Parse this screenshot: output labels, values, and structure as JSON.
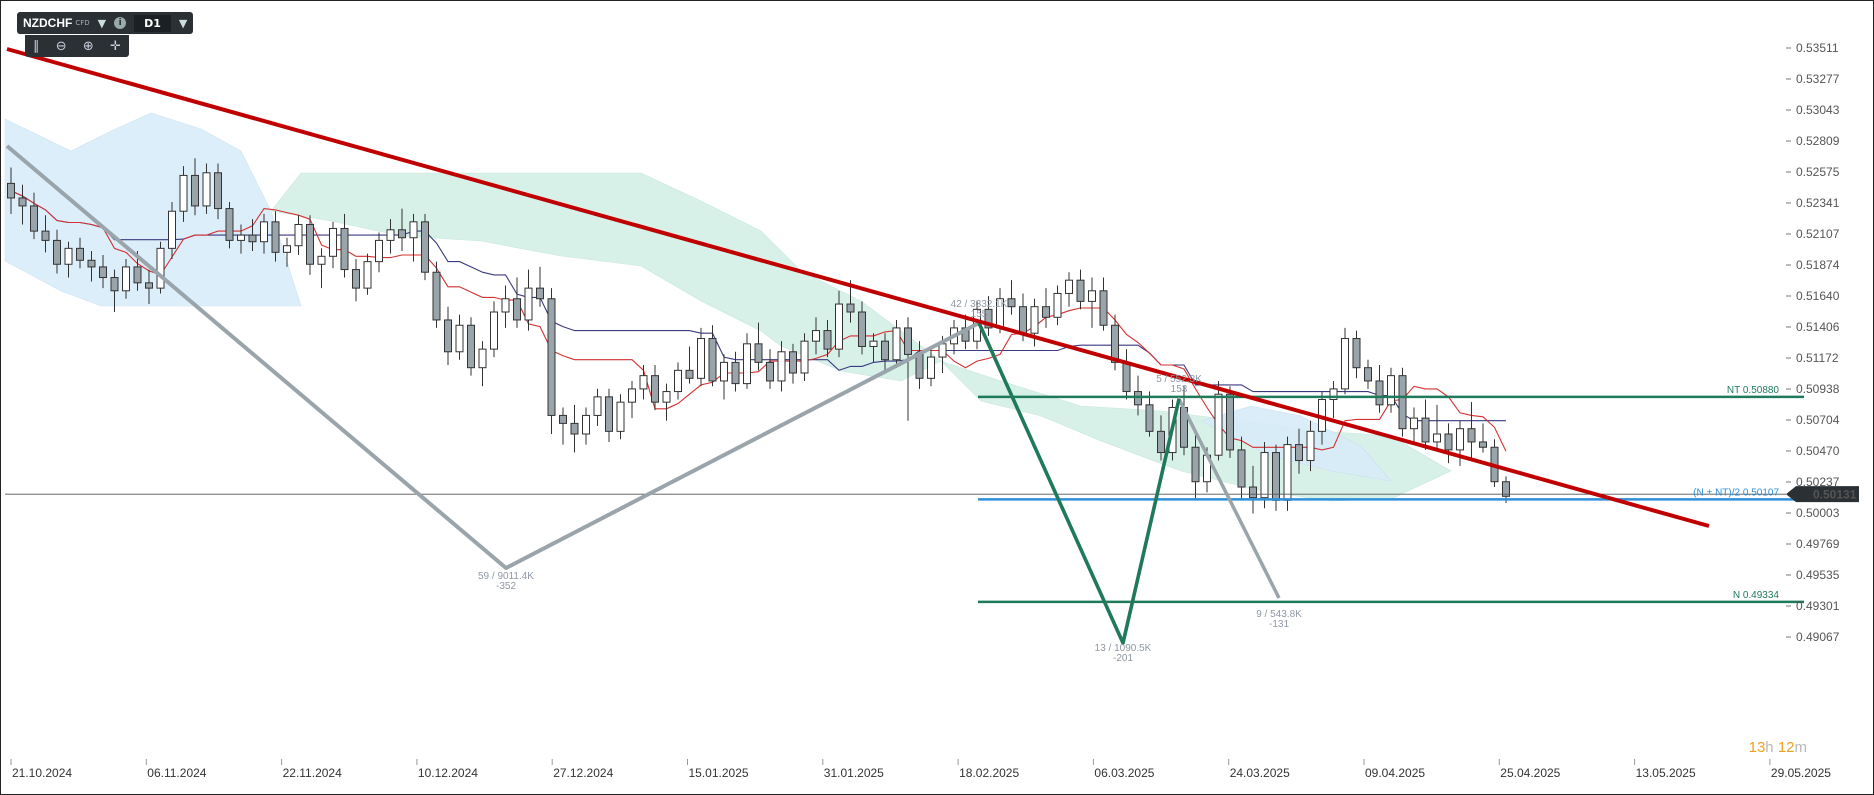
{
  "toolbar": {
    "symbol": "NZDCHF",
    "symbol_type": "CFD",
    "dropdown_icon": "caret-down-icon",
    "info_icon": "info-icon",
    "timeframe": "D1",
    "tools": [
      "indicator-icon",
      "zoom-out-icon",
      "zoom-in-icon",
      "crosshair-icon"
    ]
  },
  "timer": {
    "hours": "13",
    "h_unit": "h",
    "minutes": "12",
    "m_unit": "m"
  },
  "colors": {
    "trend_red": "#c00000",
    "wave_green": "#1e7a5a",
    "wave_gray": "#9aa4ab",
    "level_green": "#1e7a5a",
    "level_blue": "#2f8fd8",
    "cloud_bull": "#d7ecf9",
    "cloud_bear": "#d3efe6",
    "candle_up": "#ffffff",
    "candle_down": "#9aa4ab",
    "tenkan": "#d43030",
    "kijun": "#3a3a80"
  },
  "chart_data": {
    "type": "candlestick",
    "instrument": "NZDCHF",
    "timeframe": "D1",
    "ylim": [
      0.49069,
      0.53511
    ],
    "y_ticks": [
      "0.53511",
      "0.53277",
      "0.53043",
      "0.52809",
      "0.52575",
      "0.52341",
      "0.52107",
      "0.51874",
      "0.51640",
      "0.51406",
      "0.51172",
      "0.50938",
      "0.50704",
      "0.50470",
      "0.50237",
      "0.50003",
      "0.49769",
      "0.49535",
      "0.49301",
      "0.49067"
    ],
    "x_labels": [
      "21.10.2024",
      "06.11.2024",
      "22.11.2024",
      "10.12.2024",
      "27.12.2024",
      "15.01.2025",
      "31.01.2025",
      "18.02.2025",
      "06.03.2025",
      "24.03.2025",
      "09.04.2025",
      "25.04.2025",
      "13.05.2025",
      "29.05.2025"
    ],
    "current_price": "0.50131",
    "horizontal_levels": [
      {
        "label": "NT 0.50880",
        "value": 0.5088,
        "color": "green"
      },
      {
        "label": "(N + NT)/2 0.50107",
        "value": 0.50107,
        "color": "blue"
      },
      {
        "label": "N 0.49334",
        "value": 0.49334,
        "color": "green"
      }
    ],
    "swing_annotations": [
      {
        "top": "59 / 9011.4K",
        "bottom": "-352"
      },
      {
        "top": "42 / 3332.1K",
        "bottom": "155"
      },
      {
        "top": "13 / 1090.5K",
        "bottom": "-201"
      },
      {
        "top": "5 / 552.3K",
        "bottom": "153"
      },
      {
        "top": "9 / 543.8K",
        "bottom": "-131"
      }
    ],
    "candles": [
      [
        0.5249,
        0.5261,
        0.5226,
        0.5238
      ],
      [
        0.5238,
        0.5248,
        0.5218,
        0.5232
      ],
      [
        0.5232,
        0.5242,
        0.5207,
        0.5213
      ],
      [
        0.5213,
        0.5225,
        0.5197,
        0.5206
      ],
      [
        0.5206,
        0.5214,
        0.5181,
        0.5188
      ],
      [
        0.5188,
        0.5205,
        0.5178,
        0.52
      ],
      [
        0.52,
        0.5208,
        0.5185,
        0.5191
      ],
      [
        0.5191,
        0.5198,
        0.5175,
        0.5186
      ],
      [
        0.5186,
        0.5195,
        0.517,
        0.5178
      ],
      [
        0.5178,
        0.5184,
        0.5152,
        0.5168
      ],
      [
        0.5168,
        0.5192,
        0.5162,
        0.5186
      ],
      [
        0.5186,
        0.5198,
        0.5168,
        0.5174
      ],
      [
        0.5174,
        0.5184,
        0.5158,
        0.517
      ],
      [
        0.517,
        0.5205,
        0.5166,
        0.52
      ],
      [
        0.52,
        0.5235,
        0.5192,
        0.5228
      ],
      [
        0.5228,
        0.5262,
        0.522,
        0.5255
      ],
      [
        0.5255,
        0.5268,
        0.5225,
        0.5232
      ],
      [
        0.5232,
        0.5264,
        0.5226,
        0.5257
      ],
      [
        0.5257,
        0.5264,
        0.5222,
        0.523
      ],
      [
        0.523,
        0.5235,
        0.52,
        0.5206
      ],
      [
        0.5206,
        0.5218,
        0.5196,
        0.521
      ],
      [
        0.521,
        0.5222,
        0.5198,
        0.5205
      ],
      [
        0.5205,
        0.5226,
        0.5196,
        0.522
      ],
      [
        0.522,
        0.5228,
        0.519,
        0.5197
      ],
      [
        0.5197,
        0.5208,
        0.5186,
        0.5202
      ],
      [
        0.5202,
        0.5225,
        0.5195,
        0.5218
      ],
      [
        0.5218,
        0.5225,
        0.518,
        0.5188
      ],
      [
        0.5188,
        0.52,
        0.517,
        0.5194
      ],
      [
        0.5194,
        0.522,
        0.5185,
        0.5215
      ],
      [
        0.5215,
        0.5226,
        0.5178,
        0.5184
      ],
      [
        0.5184,
        0.5192,
        0.516,
        0.517
      ],
      [
        0.517,
        0.5196,
        0.5165,
        0.519
      ],
      [
        0.519,
        0.5212,
        0.5182,
        0.5206
      ],
      [
        0.5206,
        0.5222,
        0.5196,
        0.5214
      ],
      [
        0.5214,
        0.523,
        0.5198,
        0.5208
      ],
      [
        0.5208,
        0.5226,
        0.519,
        0.522
      ],
      [
        0.522,
        0.5226,
        0.5176,
        0.5182
      ],
      [
        0.5182,
        0.519,
        0.514,
        0.5146
      ],
      [
        0.5146,
        0.5156,
        0.5112,
        0.5122
      ],
      [
        0.5122,
        0.515,
        0.5116,
        0.5142
      ],
      [
        0.5142,
        0.5148,
        0.5104,
        0.511
      ],
      [
        0.511,
        0.513,
        0.5096,
        0.5124
      ],
      [
        0.5124,
        0.516,
        0.5118,
        0.5152
      ],
      [
        0.5152,
        0.5172,
        0.514,
        0.5162
      ],
      [
        0.5162,
        0.5178,
        0.514,
        0.5146
      ],
      [
        0.5146,
        0.5184,
        0.5138,
        0.517
      ],
      [
        0.517,
        0.5186,
        0.5156,
        0.5162
      ],
      [
        0.5162,
        0.517,
        0.506,
        0.5074
      ],
      [
        0.5074,
        0.508,
        0.5052,
        0.5068
      ],
      [
        0.5068,
        0.5082,
        0.5046,
        0.506
      ],
      [
        0.506,
        0.508,
        0.5052,
        0.5074
      ],
      [
        0.5074,
        0.5094,
        0.5066,
        0.5088
      ],
      [
        0.5088,
        0.5094,
        0.5054,
        0.5062
      ],
      [
        0.5062,
        0.509,
        0.5056,
        0.5084
      ],
      [
        0.5084,
        0.51,
        0.5072,
        0.5094
      ],
      [
        0.5094,
        0.5112,
        0.5086,
        0.5104
      ],
      [
        0.5104,
        0.5112,
        0.5078,
        0.5084
      ],
      [
        0.5084,
        0.5098,
        0.507,
        0.5092
      ],
      [
        0.5092,
        0.5114,
        0.5086,
        0.5108
      ],
      [
        0.5108,
        0.5126,
        0.5098,
        0.5102
      ],
      [
        0.5102,
        0.514,
        0.5096,
        0.5132
      ],
      [
        0.5132,
        0.5142,
        0.5096,
        0.51
      ],
      [
        0.51,
        0.512,
        0.5086,
        0.5114
      ],
      [
        0.5114,
        0.5122,
        0.5092,
        0.5098
      ],
      [
        0.5098,
        0.5136,
        0.5094,
        0.5128
      ],
      [
        0.5128,
        0.5144,
        0.5108,
        0.5114
      ],
      [
        0.5114,
        0.5124,
        0.5094,
        0.51
      ],
      [
        0.51,
        0.513,
        0.5092,
        0.5122
      ],
      [
        0.5122,
        0.5128,
        0.5098,
        0.5106
      ],
      [
        0.5106,
        0.5136,
        0.51,
        0.513
      ],
      [
        0.513,
        0.5148,
        0.512,
        0.5138
      ],
      [
        0.5138,
        0.5146,
        0.5118,
        0.5124
      ],
      [
        0.5124,
        0.5168,
        0.5118,
        0.5158
      ],
      [
        0.5158,
        0.5176,
        0.5144,
        0.5152
      ],
      [
        0.5152,
        0.516,
        0.512,
        0.5126
      ],
      [
        0.5126,
        0.5136,
        0.5114,
        0.513
      ],
      [
        0.513,
        0.5136,
        0.5108,
        0.5116
      ],
      [
        0.5116,
        0.5146,
        0.511,
        0.514
      ],
      [
        0.514,
        0.5148,
        0.507,
        0.512
      ],
      [
        0.512,
        0.513,
        0.5094,
        0.5102
      ],
      [
        0.5102,
        0.5124,
        0.5096,
        0.5118
      ],
      [
        0.5118,
        0.5134,
        0.5106,
        0.5128
      ],
      [
        0.5128,
        0.5146,
        0.512,
        0.514
      ],
      [
        0.514,
        0.515,
        0.5124,
        0.513
      ],
      [
        0.513,
        0.516,
        0.5124,
        0.5154
      ],
      [
        0.5154,
        0.5164,
        0.5134,
        0.514
      ],
      [
        0.514,
        0.517,
        0.5136,
        0.5162
      ],
      [
        0.5162,
        0.5176,
        0.515,
        0.5156
      ],
      [
        0.5156,
        0.5166,
        0.513,
        0.5136
      ],
      [
        0.5136,
        0.5162,
        0.5126,
        0.5156
      ],
      [
        0.5156,
        0.517,
        0.514,
        0.5148
      ],
      [
        0.5148,
        0.5172,
        0.5142,
        0.5166
      ],
      [
        0.5166,
        0.5182,
        0.5156,
        0.5176
      ],
      [
        0.5176,
        0.5184,
        0.5154,
        0.516
      ],
      [
        0.516,
        0.5178,
        0.514,
        0.5168
      ],
      [
        0.5168,
        0.5178,
        0.5138,
        0.5142
      ],
      [
        0.5142,
        0.515,
        0.5108,
        0.5114
      ],
      [
        0.5114,
        0.5124,
        0.5086,
        0.5092
      ],
      [
        0.5092,
        0.5104,
        0.5074,
        0.5082
      ],
      [
        0.5082,
        0.5092,
        0.5058,
        0.5062
      ],
      [
        0.5062,
        0.5074,
        0.504,
        0.5046
      ],
      [
        0.5046,
        0.5086,
        0.504,
        0.508
      ],
      [
        0.508,
        0.5096,
        0.5044,
        0.505
      ],
      [
        0.505,
        0.506,
        0.501,
        0.5024
      ],
      [
        0.5024,
        0.505,
        0.5016,
        0.5044
      ],
      [
        0.5044,
        0.51,
        0.504,
        0.509
      ],
      [
        0.509,
        0.5096,
        0.5042,
        0.5048
      ],
      [
        0.5048,
        0.5058,
        0.501,
        0.502
      ],
      [
        0.502,
        0.5036,
        0.5,
        0.5012
      ],
      [
        0.5012,
        0.5054,
        0.5004,
        0.5046
      ],
      [
        0.5046,
        0.5052,
        0.5002,
        0.501
      ],
      [
        0.501,
        0.5058,
        0.5002,
        0.5052
      ],
      [
        0.5052,
        0.5064,
        0.503,
        0.504
      ],
      [
        0.504,
        0.507,
        0.5032,
        0.5062
      ],
      [
        0.5062,
        0.5092,
        0.5052,
        0.5086
      ],
      [
        0.5086,
        0.51,
        0.5072,
        0.5094
      ],
      [
        0.5094,
        0.514,
        0.509,
        0.5132
      ],
      [
        0.5132,
        0.5138,
        0.5102,
        0.511
      ],
      [
        0.511,
        0.5116,
        0.5094,
        0.51
      ],
      [
        0.51,
        0.5112,
        0.5076,
        0.5082
      ],
      [
        0.5082,
        0.511,
        0.5076,
        0.5104
      ],
      [
        0.5104,
        0.511,
        0.5058,
        0.5064
      ],
      [
        0.5064,
        0.508,
        0.5054,
        0.5072
      ],
      [
        0.5072,
        0.5086,
        0.5048,
        0.5054
      ],
      [
        0.5054,
        0.5082,
        0.5048,
        0.506
      ],
      [
        0.506,
        0.5068,
        0.5038,
        0.5048
      ],
      [
        0.5048,
        0.507,
        0.5036,
        0.5064
      ],
      [
        0.5064,
        0.5084,
        0.504,
        0.5054
      ],
      [
        0.5054,
        0.5068,
        0.5046,
        0.505
      ],
      [
        0.505,
        0.5056,
        0.502,
        0.5024
      ],
      [
        0.5024,
        0.5028,
        0.5008,
        0.5013
      ]
    ]
  }
}
